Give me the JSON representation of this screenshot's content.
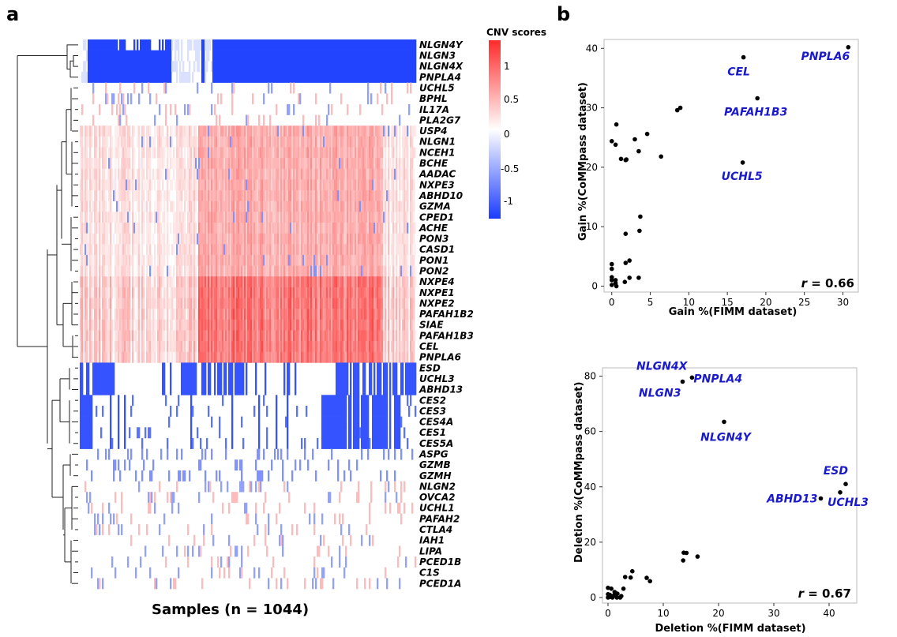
{
  "panels": {
    "a_label": "a",
    "b_label": "b"
  },
  "heatmap": {
    "samples_label": "Samples (n = 1044)",
    "legend_title": "CNV scores",
    "legend_ticks": [
      "1",
      "0.5",
      "0",
      "-0.5",
      "-1"
    ],
    "colors": {
      "high": "#ff2a2a",
      "mid": "#ffffff",
      "low": "#1a3cff"
    }
  },
  "chart_data": [
    {
      "type": "heatmap",
      "title": "CNV scores",
      "xlabel": "Samples (n = 1044)",
      "n_samples": 1044,
      "rows": [
        "NLGN4Y",
        "NLGN3",
        "NLGN4X",
        "PNPLA4",
        "UCHL5",
        "BPHL",
        "IL17A",
        "PLA2G7",
        "USP4",
        "NLGN1",
        "NCEH1",
        "BCHE",
        "AADAC",
        "NXPE3",
        "ABHD10",
        "GZMA",
        "CPED1",
        "ACHE",
        "PON3",
        "CASD1",
        "PON1",
        "PON2",
        "NXPE4",
        "NXPE1",
        "NXPE2",
        "PAFAH1B2",
        "SIAE",
        "PAFAH1B3",
        "CEL",
        "PNPLA6",
        "ESD",
        "UCHL3",
        "ABHD13",
        "CES2",
        "CES3",
        "CES4A",
        "CES1",
        "CES5A",
        "ASPG",
        "GZMB",
        "GZMH",
        "NLGN2",
        "OVCA2",
        "UCHL1",
        "PAFAH2",
        "CTLA4",
        "IAH1",
        "LIPA",
        "PCED1B",
        "C1S",
        "PCED1A"
      ],
      "row_pattern": [
        "strongdel",
        "strongdel",
        "strongdel",
        "strongdel",
        "faint",
        "faint",
        "faint",
        "faint",
        "gain",
        "gain",
        "gain",
        "gain",
        "gain",
        "gain",
        "gain",
        "gain",
        "gain",
        "gain",
        "gain",
        "gain",
        "gain",
        "gain",
        "stronggain",
        "stronggain",
        "stronggain",
        "stronggain",
        "stronggain",
        "stronggain",
        "stronggain",
        "stronggain",
        "del",
        "del",
        "del",
        "del2",
        "del2",
        "del2",
        "del2",
        "del2",
        "faintdel",
        "faintdel",
        "faintdel",
        "faint",
        "faint",
        "faint",
        "faint",
        "faint",
        "faint",
        "faint",
        "faint",
        "faint",
        "faint"
      ],
      "color_range": [
        -1.25,
        1.25
      ]
    },
    {
      "type": "scatter",
      "xlabel": "Gain %(FIMM dataset)",
      "ylabel": "Gain %(CoMMpass dataset)",
      "xlim": [
        -1,
        32
      ],
      "ylim": [
        -1,
        41.5
      ],
      "xticks": [
        "0",
        "5",
        "10",
        "15",
        "20",
        "25",
        "30"
      ],
      "yticks": [
        "0",
        "10",
        "20",
        "30",
        "40"
      ],
      "annotation": "r = 0.66",
      "points": [
        [
          30.7,
          40.2
        ],
        [
          17.1,
          38.5
        ],
        [
          18.9,
          31.6
        ],
        [
          8.5,
          29.6
        ],
        [
          8.9,
          30.0
        ],
        [
          17,
          20.8
        ],
        [
          0.6,
          27.2
        ],
        [
          0,
          24.4
        ],
        [
          0.5,
          23.8
        ],
        [
          3,
          24.7
        ],
        [
          4.6,
          25.6
        ],
        [
          3.5,
          22.7
        ],
        [
          6.4,
          21.8
        ],
        [
          1.2,
          21.4
        ],
        [
          1.9,
          21.3
        ],
        [
          1.8,
          21.2
        ],
        [
          3.7,
          11.7
        ],
        [
          3.6,
          9.3
        ],
        [
          1.8,
          8.8
        ],
        [
          2.3,
          4.3
        ],
        [
          1.8,
          3.9
        ],
        [
          0,
          3.7
        ],
        [
          0,
          2.9
        ],
        [
          0,
          1.5
        ],
        [
          0,
          1.0
        ],
        [
          0.5,
          1.0
        ],
        [
          2.3,
          1.4
        ],
        [
          3.5,
          1.4
        ],
        [
          0,
          0.2
        ],
        [
          0.5,
          0.5
        ],
        [
          1.7,
          0.7
        ],
        [
          0.6,
          0.0
        ]
      ],
      "labels": [
        {
          "text": "PNPLA6",
          "x": 30.7,
          "y": 40.2
        },
        {
          "text": "CEL",
          "x": 17.1,
          "y": 38.5
        },
        {
          "text": "PAFAH1B3",
          "x": 18.9,
          "y": 31.6
        },
        {
          "text": "UCHL5",
          "x": 17,
          "y": 20.8
        }
      ]
    },
    {
      "type": "scatter",
      "xlabel": "Deletion %(FIMM dataset)",
      "ylabel": "Deletion %(CoMMpass dataset)",
      "xlim": [
        -1,
        45
      ],
      "ylim": [
        -2,
        83
      ],
      "xticks": [
        "0",
        "10",
        "20",
        "30",
        "40"
      ],
      "yticks": [
        "0",
        "20",
        "40",
        "60",
        "80"
      ],
      "annotation": "r = 0.67",
      "points": [
        [
          15.2,
          79.5
        ],
        [
          13.5,
          78
        ],
        [
          21,
          63.5
        ],
        [
          43,
          41
        ],
        [
          42,
          38
        ],
        [
          38.5,
          35.8
        ],
        [
          16.2,
          14.8
        ],
        [
          13.7,
          16.2
        ],
        [
          14.2,
          16.1
        ],
        [
          13.6,
          13.4
        ],
        [
          4.4,
          9.5
        ],
        [
          3.1,
          7.4
        ],
        [
          4.1,
          7.2
        ],
        [
          7,
          7.1
        ],
        [
          7.6,
          5.9
        ],
        [
          0,
          3.5
        ],
        [
          0.6,
          3.2
        ],
        [
          1.2,
          2.0
        ],
        [
          2.8,
          3.2
        ],
        [
          0,
          1.2
        ],
        [
          0.3,
          1.0
        ],
        [
          0.6,
          0.5
        ],
        [
          1.1,
          0.8
        ],
        [
          1.7,
          1.4
        ],
        [
          2.4,
          0.5
        ],
        [
          0.3,
          0.2
        ],
        [
          0,
          0
        ],
        [
          0.8,
          0
        ],
        [
          1.6,
          0
        ],
        [
          2.2,
          0
        ]
      ],
      "labels": [
        {
          "text": "NLGN4X",
          "x": 15.2,
          "y": 79.5
        },
        {
          "text": "NLGN3",
          "x": 13.5,
          "y": 78
        },
        {
          "text": "PNPLA4",
          "x": 15.2,
          "y": 79.5
        },
        {
          "text": "NLGN4Y",
          "x": 21,
          "y": 63.5
        },
        {
          "text": "ESD",
          "x": 43,
          "y": 41
        },
        {
          "text": "ABHD13",
          "x": 38.5,
          "y": 35.8
        },
        {
          "text": "UCHL3",
          "x": 42,
          "y": 38
        }
      ]
    }
  ]
}
